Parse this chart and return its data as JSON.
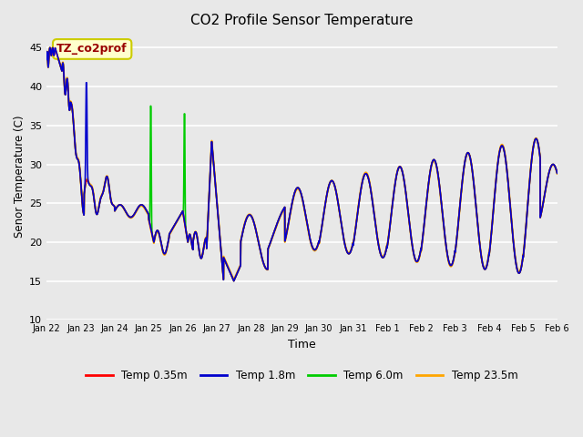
{
  "title": "CO2 Profile Sensor Temperature",
  "xlabel": "Time",
  "ylabel": "Senor Temperature (C)",
  "ylim": [
    10,
    47
  ],
  "yticks": [
    10,
    15,
    20,
    25,
    30,
    35,
    40,
    45
  ],
  "legend_labels": [
    "Temp 0.35m",
    "Temp 1.8m",
    "Temp 6.0m",
    "Temp 23.5m"
  ],
  "legend_colors": [
    "#ff0000",
    "#0000cd",
    "#00cc00",
    "#ffa500"
  ],
  "annotation_text": "TZ_co2prof",
  "annotation_bg": "#ffffcc",
  "annotation_border": "#cccc00",
  "annotation_text_color": "#990000",
  "background_color": "#e8e8e8",
  "plot_bg": "#e8e8e8",
  "grid_color": "#ffffff",
  "line_width": 1.2,
  "fig_width": 6.4,
  "fig_height": 4.8,
  "dpi": 100,
  "xtick_labels": [
    "Jan 22",
    "Jan 23",
    "Jan 24",
    "Jan 25",
    "Jan 26",
    "Jan 27",
    "Jan 28",
    "Jan 29",
    "Jan 30",
    "Jan 31",
    "Feb 1",
    "Feb 2",
    "Feb 3",
    "Feb 4",
    "Feb 5",
    "Feb 6"
  ]
}
